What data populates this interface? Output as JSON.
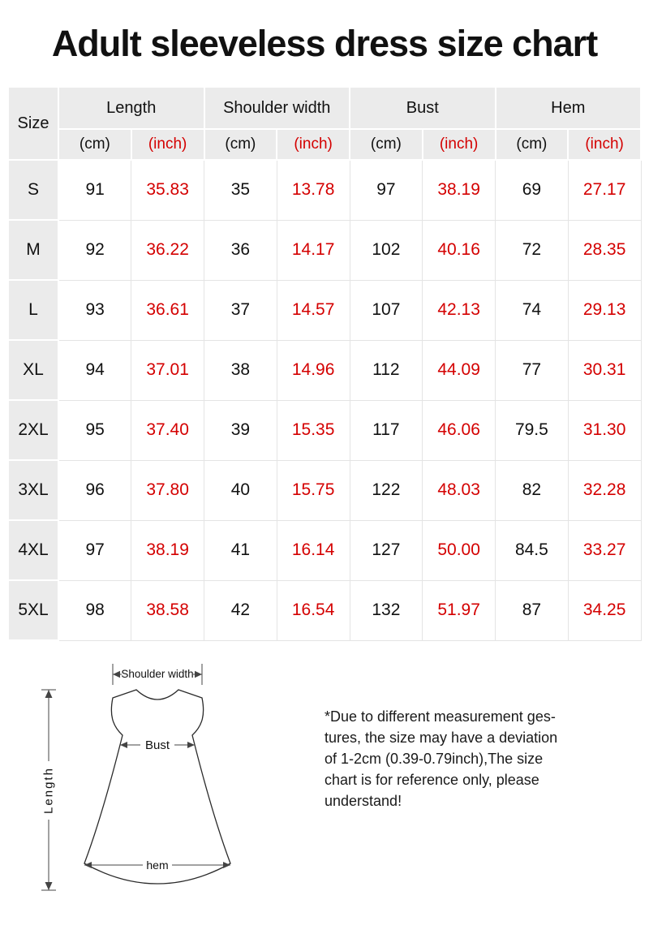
{
  "title": "Adult sleeveless dress size chart",
  "colors": {
    "inch_red": "#d40000",
    "header_gray": "#ebebeb"
  },
  "table": {
    "size_header": "Size",
    "groups": [
      "Length",
      "Shoulder width",
      "Bust",
      "Hem"
    ],
    "unit_cm": "(cm)",
    "unit_inch": "(inch)",
    "rows": [
      {
        "size": "S",
        "values": [
          "91",
          "35.83",
          "35",
          "13.78",
          "97",
          "38.19",
          "69",
          "27.17"
        ]
      },
      {
        "size": "M",
        "values": [
          "92",
          "36.22",
          "36",
          "14.17",
          "102",
          "40.16",
          "72",
          "28.35"
        ]
      },
      {
        "size": "L",
        "values": [
          "93",
          "36.61",
          "37",
          "14.57",
          "107",
          "42.13",
          "74",
          "29.13"
        ]
      },
      {
        "size": "XL",
        "values": [
          "94",
          "37.01",
          "38",
          "14.96",
          "112",
          "44.09",
          "77",
          "30.31"
        ]
      },
      {
        "size": "2XL",
        "values": [
          "95",
          "37.40",
          "39",
          "15.35",
          "117",
          "46.06",
          "79.5",
          "31.30"
        ]
      },
      {
        "size": "3XL",
        "values": [
          "96",
          "37.80",
          "40",
          "15.75",
          "122",
          "48.03",
          "82",
          "32.28"
        ]
      },
      {
        "size": "4XL",
        "values": [
          "97",
          "38.19",
          "41",
          "16.14",
          "127",
          "50.00",
          "84.5",
          "33.27"
        ]
      },
      {
        "size": "5XL",
        "values": [
          "98",
          "38.58",
          "42",
          "16.54",
          "132",
          "51.97",
          "87",
          "34.25"
        ]
      }
    ]
  },
  "diagram": {
    "shoulder_label": "Shoulder width",
    "bust_label": "Bust",
    "length_label": "Length",
    "hem_label": "hem"
  },
  "note": {
    "lines": [
      "*Due to different measurement ges-",
      "tures, the size may have a deviation",
      "of 1-2cm (0.39-0.79inch),The size",
      "chart is for reference only, please",
      "understand!"
    ]
  },
  "chart_data": {
    "type": "table",
    "title": "Adult sleeveless dress size chart",
    "columns": [
      "Size",
      "Length (cm)",
      "Length (inch)",
      "Shoulder width (cm)",
      "Shoulder width (inch)",
      "Bust (cm)",
      "Bust (inch)",
      "Hem (cm)",
      "Hem (inch)"
    ],
    "rows": [
      [
        "S",
        91,
        35.83,
        35,
        13.78,
        97,
        38.19,
        69,
        27.17
      ],
      [
        "M",
        92,
        36.22,
        36,
        14.17,
        102,
        40.16,
        72,
        28.35
      ],
      [
        "L",
        93,
        36.61,
        37,
        14.57,
        107,
        42.13,
        74,
        29.13
      ],
      [
        "XL",
        94,
        37.01,
        38,
        14.96,
        112,
        44.09,
        77,
        30.31
      ],
      [
        "2XL",
        95,
        37.4,
        39,
        15.35,
        117,
        46.06,
        79.5,
        31.3
      ],
      [
        "3XL",
        96,
        37.8,
        40,
        15.75,
        122,
        48.03,
        82,
        32.28
      ],
      [
        "4XL",
        97,
        38.19,
        41,
        16.14,
        127,
        50.0,
        84.5,
        33.27
      ],
      [
        "5XL",
        98,
        38.58,
        42,
        16.54,
        132,
        51.97,
        87,
        34.25
      ]
    ]
  }
}
